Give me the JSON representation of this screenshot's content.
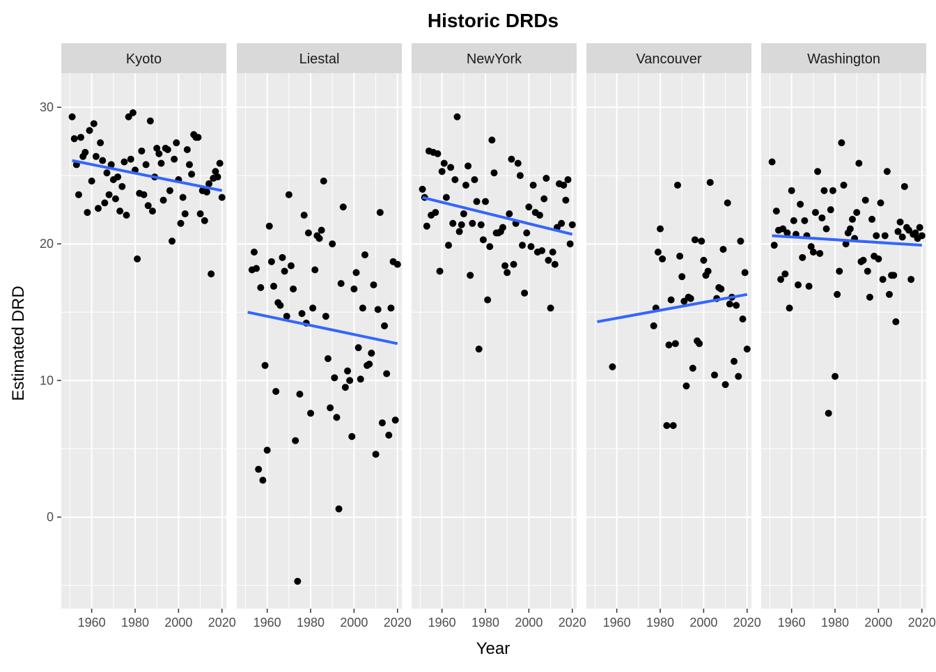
{
  "chart_data": {
    "type": "scatter",
    "title": "Historic DRDs",
    "xlabel": "Year",
    "ylabel": "Estimated DRD",
    "xlim": [
      1946,
      2022
    ],
    "ylim": [
      -6.7,
      32.5
    ],
    "x_ticks": [
      1960,
      1980,
      2000,
      2020
    ],
    "y_ticks": [
      0,
      10,
      20,
      30
    ],
    "grid": true,
    "colors": {
      "panel_bg": "#ebebeb",
      "grid": "#ffffff",
      "strip_bg": "#d9d9d9",
      "point": "#000000",
      "fit_line": "#3366ff"
    },
    "panels": [
      {
        "name": "Kyoto",
        "fit": {
          "x": [
            1951,
            2020
          ],
          "y": [
            26.1,
            23.9
          ]
        },
        "x": [
          1951,
          1952,
          1953,
          1954,
          1955,
          1956,
          1957,
          1958,
          1959,
          1960,
          1961,
          1962,
          1963,
          1964,
          1965,
          1966,
          1967,
          1968,
          1969,
          1970,
          1971,
          1972,
          1973,
          1974,
          1975,
          1976,
          1977,
          1978,
          1979,
          1980,
          1981,
          1982,
          1983,
          1984,
          1985,
          1986,
          1987,
          1988,
          1989,
          1990,
          1991,
          1992,
          1993,
          1994,
          1995,
          1996,
          1997,
          1998,
          1999,
          2000,
          2001,
          2002,
          2003,
          2004,
          2005,
          2006,
          2007,
          2008,
          2009,
          2010,
          2011,
          2012,
          2013,
          2014,
          2015,
          2016,
          2017,
          2018,
          2019,
          2020
        ],
        "y": [
          29.3,
          27.7,
          25.8,
          23.6,
          27.8,
          26.4,
          26.7,
          22.3,
          28.3,
          24.6,
          28.8,
          26.4,
          22.6,
          27.4,
          26.1,
          23.0,
          25.2,
          23.6,
          25.8,
          24.7,
          23.3,
          24.9,
          22.4,
          24.2,
          26.0,
          22.1,
          29.3,
          26.2,
          29.6,
          25.4,
          18.9,
          23.7,
          26.8,
          23.6,
          25.8,
          22.8,
          29.0,
          22.4,
          24.9,
          27.0,
          26.6,
          25.9,
          23.2,
          27.0,
          26.9,
          23.9,
          20.2,
          26.2,
          27.4,
          24.7,
          21.5,
          23.4,
          22.2,
          26.9,
          25.8,
          25.1,
          28.0,
          27.8,
          27.8,
          22.2,
          23.9,
          21.7,
          23.8,
          24.4,
          17.8,
          24.8,
          25.3,
          24.9,
          25.9,
          23.4
        ]
      },
      {
        "name": "Liestal",
        "fit": {
          "x": [
            1951,
            2020
          ],
          "y": [
            15.0,
            12.7
          ]
        },
        "x": [
          1953,
          1954,
          1955,
          1956,
          1957,
          1958,
          1959,
          1960,
          1961,
          1962,
          1963,
          1964,
          1965,
          1966,
          1967,
          1968,
          1969,
          1970,
          1971,
          1972,
          1973,
          1974,
          1975,
          1976,
          1977,
          1978,
          1979,
          1980,
          1981,
          1982,
          1983,
          1984,
          1985,
          1986,
          1987,
          1988,
          1989,
          1990,
          1991,
          1992,
          1993,
          1994,
          1995,
          1996,
          1997,
          1998,
          1999,
          2000,
          2001,
          2002,
          2003,
          2004,
          2005,
          2006,
          2007,
          2008,
          2009,
          2010,
          2011,
          2012,
          2013,
          2014,
          2015,
          2016,
          2017,
          2018,
          2019,
          2020
        ],
        "y": [
          18.1,
          19.4,
          18.2,
          3.5,
          16.8,
          2.7,
          11.1,
          4.9,
          21.3,
          18.7,
          16.9,
          9.2,
          15.7,
          15.5,
          19.0,
          18.0,
          14.7,
          23.6,
          18.4,
          16.7,
          5.6,
          -4.7,
          9.0,
          14.9,
          22.1,
          14.2,
          20.8,
          7.6,
          15.3,
          18.1,
          20.6,
          20.4,
          21.0,
          24.6,
          14.7,
          11.6,
          8.0,
          20.0,
          10.2,
          7.3,
          0.6,
          17.1,
          22.7,
          9.5,
          10.7,
          10.0,
          5.9,
          16.7,
          17.9,
          12.4,
          10.1,
          15.3,
          19.2,
          11.1,
          11.2,
          12.0,
          17.0,
          4.6,
          15.2,
          22.3,
          6.9,
          14.0,
          10.5,
          6.0,
          15.3,
          18.7,
          7.1,
          18.5
        ]
      },
      {
        "name": "NewYork",
        "fit": {
          "x": [
            1951,
            2020
          ],
          "y": [
            23.4,
            20.7
          ]
        },
        "x": [
          1951,
          1952,
          1953,
          1954,
          1955,
          1956,
          1957,
          1958,
          1959,
          1960,
          1961,
          1962,
          1963,
          1964,
          1965,
          1966,
          1967,
          1968,
          1969,
          1970,
          1971,
          1972,
          1973,
          1974,
          1975,
          1976,
          1977,
          1978,
          1979,
          1980,
          1981,
          1982,
          1983,
          1984,
          1985,
          1986,
          1987,
          1988,
          1989,
          1990,
          1991,
          1992,
          1993,
          1994,
          1995,
          1996,
          1997,
          1998,
          1999,
          2000,
          2001,
          2002,
          2003,
          2004,
          2005,
          2006,
          2007,
          2008,
          2009,
          2010,
          2011,
          2012,
          2013,
          2014,
          2015,
          2016,
          2017,
          2018,
          2019,
          2020
        ],
        "y": [
          24.0,
          23.4,
          21.3,
          26.8,
          22.1,
          26.7,
          22.3,
          26.6,
          18.0,
          25.3,
          25.9,
          23.4,
          19.9,
          25.6,
          21.5,
          24.7,
          29.3,
          20.9,
          21.4,
          22.2,
          24.3,
          25.7,
          17.7,
          21.5,
          24.7,
          23.1,
          12.3,
          21.4,
          20.3,
          23.1,
          15.9,
          19.8,
          27.6,
          25.2,
          20.8,
          20.8,
          20.9,
          21.2,
          18.4,
          17.9,
          22.2,
          26.2,
          18.5,
          21.5,
          25.9,
          25.0,
          19.9,
          16.4,
          20.8,
          22.7,
          19.8,
          24.3,
          22.3,
          19.4,
          22.1,
          19.5,
          23.3,
          24.8,
          18.8,
          15.3,
          19.4,
          18.5,
          21.2,
          24.4,
          21.5,
          24.3,
          23.2,
          24.7,
          20.0,
          21.4
        ]
      },
      {
        "name": "Vancouver",
        "fit": {
          "x": [
            1951,
            2020
          ],
          "y": [
            14.3,
            16.3
          ]
        },
        "x": [
          1958,
          1977,
          1978,
          1979,
          1980,
          1981,
          1983,
          1984,
          1985,
          1986,
          1987,
          1988,
          1989,
          1990,
          1991,
          1992,
          1993,
          1994,
          1995,
          1996,
          1997,
          1998,
          1999,
          2000,
          2001,
          2002,
          2003,
          2005,
          2006,
          2007,
          2008,
          2009,
          2010,
          2011,
          2012,
          2013,
          2014,
          2015,
          2016,
          2017,
          2018,
          2019,
          2020
        ],
        "y": [
          11.0,
          14.0,
          15.3,
          19.4,
          21.1,
          18.9,
          6.7,
          12.6,
          15.9,
          6.7,
          12.7,
          24.3,
          19.1,
          17.6,
          15.8,
          9.6,
          16.1,
          16.0,
          10.9,
          20.3,
          12.9,
          12.7,
          20.2,
          18.8,
          17.7,
          18.0,
          24.5,
          10.4,
          16.0,
          16.8,
          16.7,
          19.6,
          9.7,
          23.0,
          15.6,
          16.1,
          11.4,
          15.5,
          10.3,
          20.2,
          14.5,
          17.9,
          12.3
        ]
      },
      {
        "name": "Washington",
        "fit": {
          "x": [
            1951,
            2020
          ],
          "y": [
            20.6,
            19.9
          ]
        },
        "x": [
          1951,
          1952,
          1953,
          1954,
          1955,
          1956,
          1957,
          1958,
          1959,
          1960,
          1961,
          1962,
          1963,
          1964,
          1965,
          1966,
          1967,
          1968,
          1969,
          1970,
          1971,
          1972,
          1973,
          1974,
          1975,
          1976,
          1977,
          1978,
          1979,
          1980,
          1981,
          1982,
          1983,
          1984,
          1985,
          1986,
          1987,
          1988,
          1989,
          1990,
          1991,
          1992,
          1993,
          1994,
          1995,
          1996,
          1997,
          1998,
          1999,
          2000,
          2001,
          2002,
          2003,
          2004,
          2005,
          2006,
          2007,
          2008,
          2009,
          2010,
          2011,
          2012,
          2013,
          2014,
          2015,
          2016,
          2017,
          2018,
          2019,
          2020
        ],
        "y": [
          26.0,
          19.9,
          22.4,
          21.0,
          17.4,
          21.1,
          17.8,
          20.8,
          15.3,
          23.9,
          21.7,
          20.7,
          17.0,
          22.9,
          19.0,
          21.7,
          20.6,
          16.9,
          19.8,
          19.4,
          22.3,
          25.3,
          19.3,
          21.9,
          23.9,
          21.1,
          7.6,
          22.5,
          23.9,
          10.3,
          16.3,
          18.0,
          27.4,
          24.3,
          20.0,
          20.8,
          21.1,
          21.8,
          20.4,
          22.3,
          25.9,
          18.7,
          18.8,
          23.2,
          18.0,
          16.1,
          21.8,
          19.1,
          20.6,
          18.9,
          23.0,
          17.4,
          20.6,
          25.3,
          16.3,
          17.7,
          17.7,
          14.3,
          20.9,
          21.6,
          20.5,
          24.2,
          21.2,
          21.0,
          17.4,
          20.7,
          20.8,
          20.4,
          21.2,
          20.6
        ]
      }
    ]
  }
}
